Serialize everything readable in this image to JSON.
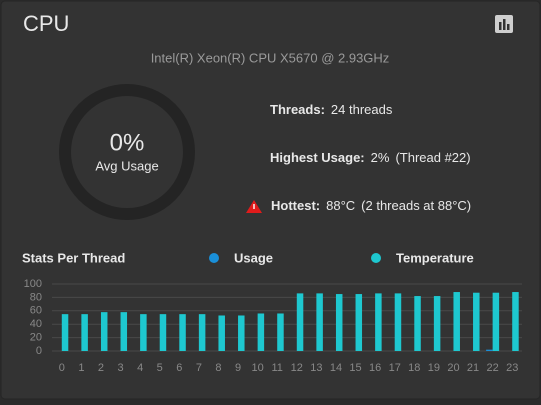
{
  "header": {
    "title": "CPU",
    "subtitle": "Intel(R) Xeon(R) CPU X5670 @ 2.93GHz"
  },
  "gauge": {
    "value": "0%",
    "label": "Avg Usage"
  },
  "stats": [
    {
      "label": "Threads:",
      "value": "24 threads"
    },
    {
      "label": "Highest Usage:",
      "value": "2%",
      "detail": "(Thread #22)"
    },
    {
      "label": "Hottest:",
      "value": "88°C",
      "detail": "(2 threads at 88°C)"
    }
  ],
  "thread_chart": {
    "type": "bar",
    "title": "Stats Per Thread",
    "categories": [
      "0",
      "1",
      "2",
      "3",
      "4",
      "5",
      "6",
      "7",
      "8",
      "9",
      "10",
      "11",
      "12",
      "13",
      "14",
      "15",
      "16",
      "17",
      "18",
      "19",
      "20",
      "21",
      "22",
      "23"
    ],
    "series": [
      {
        "name": "Usage",
        "color": "#1a8fd8",
        "values": [
          0,
          0,
          0,
          0,
          0,
          0,
          0,
          0,
          0,
          0,
          0,
          0,
          0,
          0,
          0,
          0,
          0,
          0,
          0,
          0,
          0,
          0,
          2,
          0
        ]
      },
      {
        "name": "Temperature",
        "color": "#1ec8d0",
        "values": [
          55,
          55,
          58,
          58,
          55,
          55,
          55,
          55,
          53,
          53,
          56,
          56,
          86,
          86,
          85,
          85,
          86,
          86,
          82,
          82,
          88,
          87,
          87,
          88
        ]
      }
    ],
    "ylim": [
      0,
      100
    ],
    "yticks": [
      0,
      20,
      40,
      60,
      80,
      100
    ],
    "grid": true
  }
}
